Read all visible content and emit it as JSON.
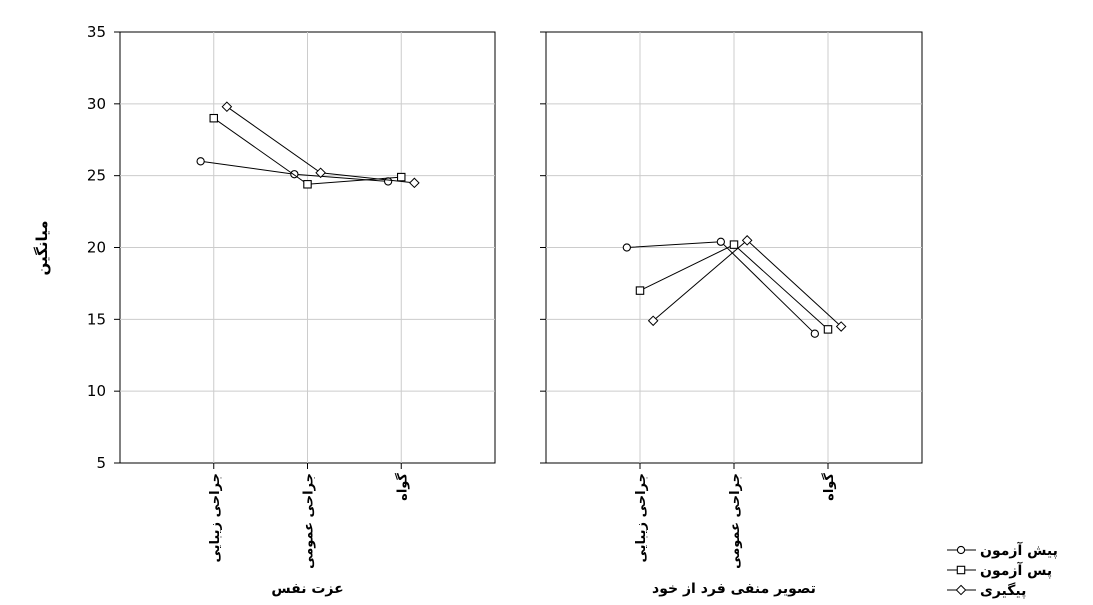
{
  "chart_data": {
    "type": "line",
    "ylabel": "میانگین",
    "ylim": [
      5,
      35
    ],
    "yticks": [
      5,
      10,
      15,
      20,
      25,
      30,
      35
    ],
    "grid": true,
    "legend_position": "bottom-right",
    "series_names": [
      "پیش آزمون",
      "پس آزمون",
      "پیگیری"
    ],
    "series_markers": [
      "circle",
      "square",
      "diamond"
    ],
    "panels": [
      {
        "xlabel": "عزت نفس",
        "categories": [
          "جراحی زیبایی",
          "جراحی عمومی",
          "گواه"
        ],
        "series": [
          {
            "name": "پیش آزمون",
            "values": [
              26.0,
              25.1,
              24.6
            ]
          },
          {
            "name": "پس آزمون",
            "values": [
              29.0,
              24.4,
              24.9
            ]
          },
          {
            "name": "پیگیری",
            "values": [
              29.8,
              25.2,
              24.5
            ]
          }
        ]
      },
      {
        "xlabel": "تصویر منفی فرد از خود",
        "categories": [
          "جراحی زیبایی",
          "جراحی عمومی",
          "گواه"
        ],
        "series": [
          {
            "name": "پیش آزمون",
            "values": [
              20.0,
              20.4,
              14.0
            ]
          },
          {
            "name": "پس آزمون",
            "values": [
              17.0,
              20.2,
              14.3
            ]
          },
          {
            "name": "پیگیری",
            "values": [
              14.9,
              20.5,
              14.5
            ]
          }
        ]
      }
    ]
  }
}
